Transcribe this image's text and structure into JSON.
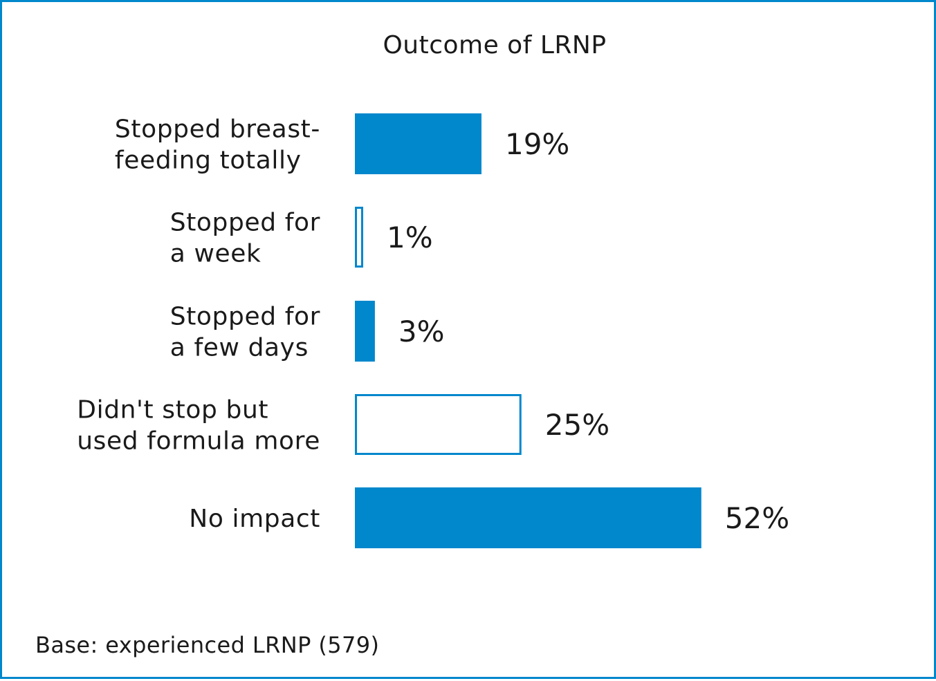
{
  "chart_data": {
    "type": "bar",
    "orientation": "horizontal",
    "title": "Outcome of LRNP",
    "categories": [
      [
        "Stopped breast-",
        "feeding totally"
      ],
      [
        "Stopped for",
        "a week"
      ],
      [
        "Stopped for",
        "a few days"
      ],
      [
        "Didn't stop but",
        "used formula more"
      ],
      [
        "No impact"
      ]
    ],
    "values": [
      19,
      1,
      3,
      25,
      52
    ],
    "value_labels": [
      "19%",
      "1%",
      "3%",
      "25%",
      "52%"
    ],
    "bar_style": [
      "filled",
      "outline",
      "filled",
      "outline",
      "filled"
    ],
    "unit": "%",
    "xlim": [
      0,
      100
    ],
    "grid": false,
    "legend": "none",
    "note": "Base: experienced LRNP (579)",
    "colors": {
      "bar": "#0087cc",
      "frame": "#0087cc",
      "text": "#1a1a1a"
    }
  }
}
